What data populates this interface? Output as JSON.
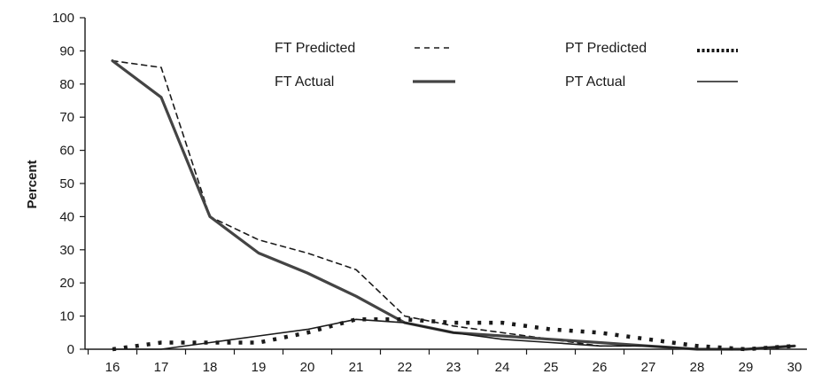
{
  "chart_data": {
    "type": "line",
    "title": "",
    "xlabel": "",
    "ylabel": "Percent",
    "x": [
      16,
      17,
      18,
      19,
      20,
      21,
      22,
      23,
      24,
      25,
      26,
      27,
      28,
      29,
      30
    ],
    "ylim": [
      0,
      100
    ],
    "yticks": [
      0,
      10,
      20,
      30,
      40,
      50,
      60,
      70,
      80,
      90,
      100
    ],
    "grid": false,
    "legend_position": "top",
    "series": [
      {
        "name": "FT Predicted",
        "values": [
          87,
          85,
          40,
          33,
          29,
          24,
          10,
          7,
          5,
          3,
          1,
          1,
          0,
          0,
          1
        ],
        "color": "#1a1a1a",
        "style": "dashed"
      },
      {
        "name": "FT Actual",
        "values": [
          87,
          76,
          40,
          29,
          23,
          16,
          8,
          5,
          4,
          3,
          2,
          1,
          0,
          0,
          1
        ],
        "color": "#444444",
        "style": "thick"
      },
      {
        "name": "PT Predicted",
        "values": [
          0,
          2,
          2,
          2,
          5,
          9,
          9,
          8,
          8,
          6,
          5,
          3,
          1,
          0,
          1
        ],
        "color": "#1a1a1a",
        "style": "dotted"
      },
      {
        "name": "PT Actual",
        "values": [
          0,
          0,
          2,
          4,
          6,
          9,
          8,
          5,
          3,
          2,
          1,
          1,
          0,
          0,
          1
        ],
        "color": "#1a1a1a",
        "style": "solid"
      }
    ],
    "legend": [
      {
        "label": "FT Predicted",
        "series": 0
      },
      {
        "label": "FT Actual",
        "series": 1
      },
      {
        "label": "PT Predicted",
        "series": 2
      },
      {
        "label": "PT Actual",
        "series": 3
      }
    ]
  }
}
